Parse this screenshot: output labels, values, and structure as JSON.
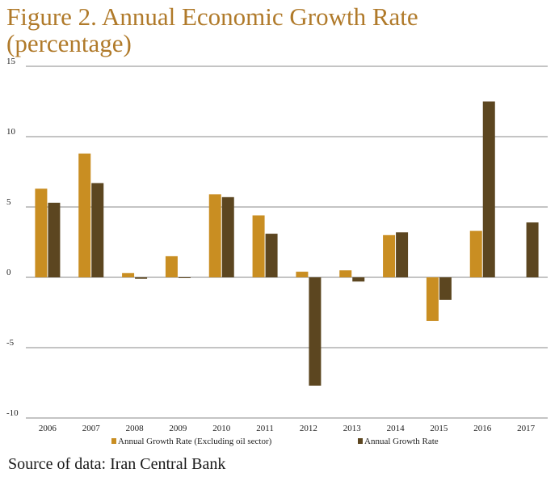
{
  "title_line1": "Figure 2. Annual Economic Growth Rate",
  "title_line2": "(percentage)",
  "source": "Source of data: Iran Central Bank",
  "chart_data": {
    "type": "bar",
    "categories": [
      "2006",
      "2007",
      "2008",
      "2009",
      "2010",
      "2011",
      "2012",
      "2013",
      "2014",
      "2015",
      "2016",
      "2017"
    ],
    "series": [
      {
        "name": "Annual Growth Rate (Excluding oil sector)",
        "color": "#c98e22",
        "values": [
          6.3,
          8.8,
          0.3,
          1.5,
          5.9,
          4.4,
          0.4,
          0.5,
          3.0,
          -3.1,
          3.3,
          null
        ]
      },
      {
        "name": "Annual Growth Rate",
        "color": "#5c4620",
        "values": [
          5.3,
          6.7,
          -0.1,
          0.0,
          5.7,
          3.1,
          -7.7,
          -0.3,
          3.2,
          -1.6,
          12.5,
          3.9
        ]
      }
    ],
    "ylim": [
      -10,
      15
    ],
    "yticks": [
      "-10",
      "-5",
      "0",
      "5",
      "10",
      "15"
    ],
    "grid": true,
    "legend": "bottom"
  }
}
